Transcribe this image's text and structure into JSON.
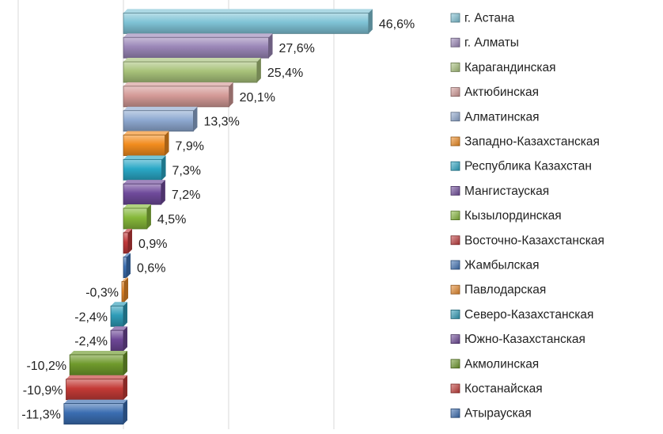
{
  "chart_data": {
    "type": "bar",
    "orientation": "horizontal",
    "grid": true,
    "legend_position": "right",
    "xlim": [
      -15,
      50
    ],
    "categories": [
      "г. Астана",
      "г. Алматы",
      "Карагандинская",
      "Актюбинская",
      "Алматинская",
      "Западно-Казахстанская",
      "Республика Казахстан",
      "Мангистауская",
      "Кызылординская",
      "Восточно-Казахстанская",
      "Жамбылская",
      "Павлодарская",
      "Северо-Казахстанская",
      "Южно-Казахстанская",
      "Акмолинская",
      "Костанайская",
      "Атырауская"
    ],
    "values": [
      46.6,
      27.6,
      25.4,
      20.1,
      13.3,
      7.9,
      7.3,
      7.2,
      4.5,
      0.9,
      0.6,
      -0.3,
      -2.4,
      -2.4,
      -10.2,
      -10.9,
      -11.3
    ],
    "labels": [
      "46,6%",
      "27,6%",
      "25,4%",
      "20,1%",
      "13,3%",
      "7,9%",
      "7,3%",
      "7,2%",
      "4,5%",
      "0,9%",
      "0,6%",
      "-0,3%",
      "-2,4%",
      "-2,4%",
      "-10,2%",
      "-10,9%",
      "-11,3%"
    ],
    "colors": [
      "#7fc3d6",
      "#9b87b8",
      "#a8c27a",
      "#d49a97",
      "#8ea9d1",
      "#f28c1e",
      "#2aa8c6",
      "#6f4a9b",
      "#86b83a",
      "#c0393b",
      "#3e72b5",
      "#e8892a",
      "#2e9cb8",
      "#6d4796",
      "#6f9a2c",
      "#c33a36",
      "#3a6db1"
    ]
  }
}
